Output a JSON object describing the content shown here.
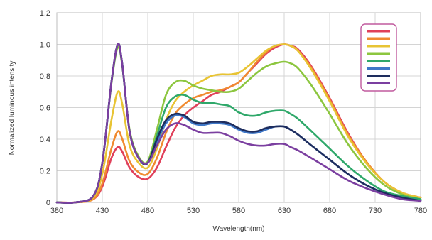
{
  "chart_data": {
    "type": "line",
    "title": "",
    "xlabel": "Wavelength(nm)",
    "ylabel": "Normalized luminous intensity",
    "xlim": [
      380,
      780
    ],
    "ylim": [
      0,
      1.2
    ],
    "xticks": [
      380,
      430,
      480,
      530,
      580,
      630,
      680,
      730,
      780
    ],
    "yticks": [
      0,
      0.2,
      0.4,
      0.6,
      0.8,
      1.0,
      1.2
    ],
    "xtick_labels": [
      "380",
      "430",
      "480",
      "530",
      "580",
      "630",
      "680",
      "730",
      "780"
    ],
    "ytick_labels": [
      "0",
      "0.2",
      "0.4",
      "0.6",
      "0.8",
      "1.0",
      "1.2"
    ],
    "grid": true,
    "legend": {
      "position": "top-right",
      "border_color": "#c05a9e"
    },
    "x": [
      380,
      400,
      420,
      430,
      440,
      447,
      452,
      460,
      470,
      480,
      490,
      500,
      510,
      520,
      530,
      540,
      550,
      560,
      570,
      580,
      590,
      600,
      610,
      620,
      630,
      637,
      645,
      660,
      680,
      700,
      720,
      740,
      760,
      780
    ],
    "series": [
      {
        "color": "#e0405a",
        "values": [
          0,
          0,
          0.02,
          0.1,
          0.28,
          0.35,
          0.32,
          0.22,
          0.16,
          0.15,
          0.22,
          0.35,
          0.47,
          0.55,
          0.6,
          0.64,
          0.68,
          0.7,
          0.73,
          0.76,
          0.82,
          0.88,
          0.94,
          0.98,
          1.0,
          0.99,
          0.97,
          0.86,
          0.66,
          0.44,
          0.26,
          0.13,
          0.06,
          0.03
        ]
      },
      {
        "color": "#f08a30",
        "values": [
          0,
          0,
          0.02,
          0.12,
          0.34,
          0.45,
          0.4,
          0.26,
          0.19,
          0.18,
          0.28,
          0.44,
          0.56,
          0.62,
          0.66,
          0.68,
          0.7,
          0.71,
          0.73,
          0.76,
          0.82,
          0.89,
          0.95,
          0.99,
          1.0,
          0.99,
          0.96,
          0.85,
          0.65,
          0.43,
          0.26,
          0.13,
          0.06,
          0.03
        ]
      },
      {
        "color": "#e8c434",
        "values": [
          0,
          0,
          0.03,
          0.18,
          0.52,
          0.7,
          0.62,
          0.36,
          0.25,
          0.22,
          0.34,
          0.52,
          0.64,
          0.7,
          0.74,
          0.77,
          0.8,
          0.81,
          0.81,
          0.82,
          0.86,
          0.91,
          0.96,
          0.99,
          1.0,
          0.99,
          0.96,
          0.84,
          0.64,
          0.42,
          0.25,
          0.13,
          0.06,
          0.03
        ]
      },
      {
        "color": "#8cc63f",
        "values": [
          0,
          0,
          0.04,
          0.25,
          0.75,
          0.98,
          0.86,
          0.46,
          0.29,
          0.26,
          0.46,
          0.68,
          0.76,
          0.77,
          0.74,
          0.72,
          0.71,
          0.7,
          0.7,
          0.72,
          0.77,
          0.82,
          0.86,
          0.88,
          0.89,
          0.88,
          0.85,
          0.74,
          0.56,
          0.37,
          0.22,
          0.11,
          0.05,
          0.02
        ]
      },
      {
        "color": "#2fa86a",
        "values": [
          0,
          0,
          0.04,
          0.25,
          0.76,
          1.0,
          0.87,
          0.45,
          0.28,
          0.25,
          0.42,
          0.6,
          0.67,
          0.68,
          0.65,
          0.63,
          0.63,
          0.62,
          0.61,
          0.57,
          0.55,
          0.55,
          0.57,
          0.58,
          0.58,
          0.56,
          0.53,
          0.45,
          0.34,
          0.23,
          0.14,
          0.07,
          0.04,
          0.02
        ]
      },
      {
        "color": "#3f78c8",
        "values": [
          0,
          0,
          0.04,
          0.25,
          0.76,
          1.0,
          0.87,
          0.45,
          0.28,
          0.25,
          0.38,
          0.5,
          0.55,
          0.54,
          0.5,
          0.49,
          0.5,
          0.5,
          0.49,
          0.46,
          0.44,
          0.44,
          0.46,
          0.48,
          0.48,
          0.46,
          0.43,
          0.36,
          0.27,
          0.18,
          0.11,
          0.06,
          0.03,
          0.01
        ]
      },
      {
        "color": "#1e2d5e",
        "values": [
          0,
          0,
          0.04,
          0.25,
          0.76,
          1.0,
          0.87,
          0.45,
          0.28,
          0.25,
          0.4,
          0.52,
          0.56,
          0.55,
          0.51,
          0.5,
          0.51,
          0.51,
          0.5,
          0.47,
          0.45,
          0.45,
          0.47,
          0.48,
          0.48,
          0.46,
          0.43,
          0.36,
          0.27,
          0.18,
          0.11,
          0.06,
          0.03,
          0.01
        ]
      },
      {
        "color": "#7b3fa0",
        "values": [
          0,
          0,
          0.04,
          0.25,
          0.76,
          1.0,
          0.87,
          0.45,
          0.28,
          0.25,
          0.36,
          0.46,
          0.5,
          0.49,
          0.46,
          0.44,
          0.44,
          0.44,
          0.42,
          0.39,
          0.37,
          0.36,
          0.36,
          0.37,
          0.37,
          0.35,
          0.33,
          0.28,
          0.21,
          0.14,
          0.09,
          0.05,
          0.02,
          0.01
        ]
      }
    ]
  }
}
